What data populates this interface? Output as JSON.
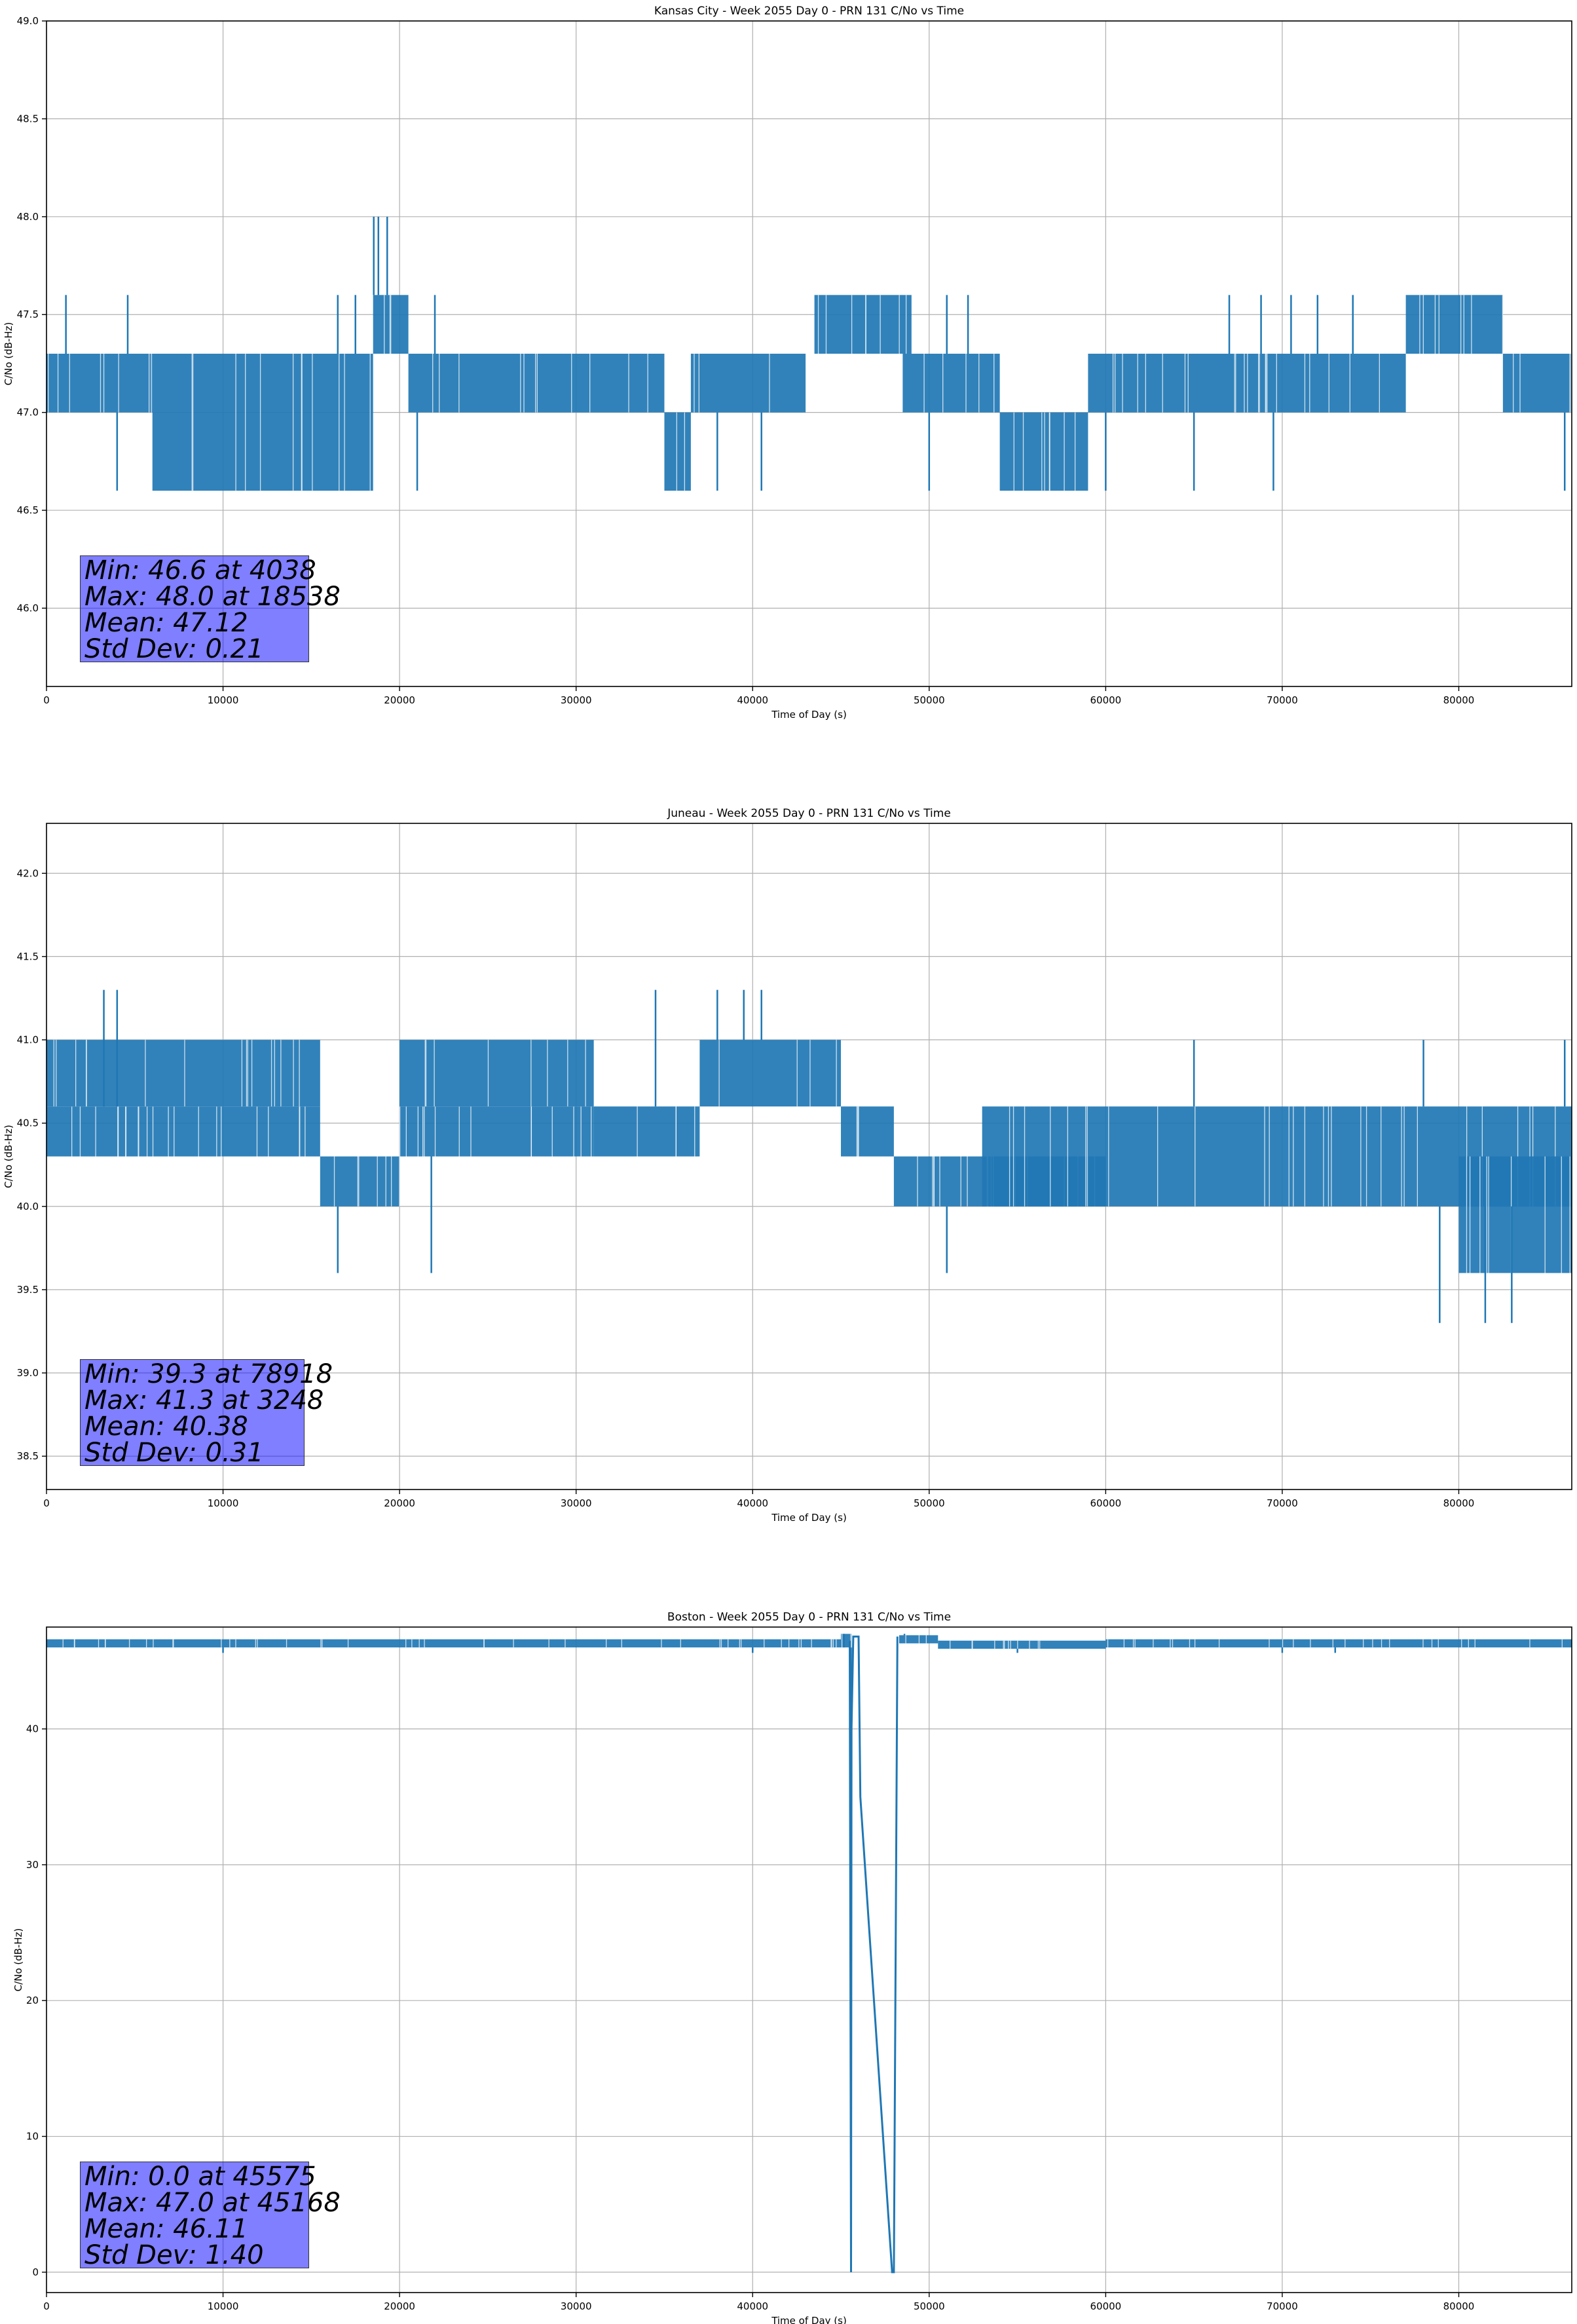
{
  "colors": {
    "series": "#1f77b4",
    "grid": "#b0b0b0",
    "stats_box": "rgba(0,0,255,0.5)"
  },
  "chart_data": [
    {
      "type": "line",
      "title": "Kansas City - Week 2055 Day 0 - PRN 131 C/No vs Time",
      "xlabel": "Time of Day (s)",
      "ylabel": "C/No (dB-Hz)",
      "xlim": [
        0,
        86400
      ],
      "ylim": [
        45.6,
        49.0
      ],
      "xticks": [
        0,
        10000,
        20000,
        30000,
        40000,
        50000,
        60000,
        70000,
        80000
      ],
      "yticks": [
        "46.0",
        "46.5",
        "47.0",
        "47.5",
        "48.0",
        "48.5",
        "49.0"
      ],
      "grid": true,
      "series": [
        {
          "segments": [
            {
              "x": [
                0,
                6000
              ],
              "low": 47.0,
              "high": 47.3
            },
            {
              "x": [
                6000,
                18500
              ],
              "low": 46.6,
              "high": 47.3
            },
            {
              "x": [
                18500,
                20500
              ],
              "low": 47.3,
              "high": 47.6
            },
            {
              "x": [
                20500,
                35000
              ],
              "low": 47.0,
              "high": 47.3
            },
            {
              "x": [
                35000,
                36500
              ],
              "low": 46.6,
              "high": 47.0
            },
            {
              "x": [
                36500,
                43000
              ],
              "low": 47.0,
              "high": 47.3
            },
            {
              "x": [
                43500,
                49000
              ],
              "low": 47.3,
              "high": 47.6
            },
            {
              "x": [
                48500,
                54000
              ],
              "low": 47.0,
              "high": 47.3
            },
            {
              "x": [
                54000,
                59000
              ],
              "low": 46.6,
              "high": 47.0
            },
            {
              "x": [
                59000,
                77000
              ],
              "low": 47.0,
              "high": 47.3
            },
            {
              "x": [
                77000,
                82500
              ],
              "low": 47.3,
              "high": 47.6
            },
            {
              "x": [
                82500,
                86400
              ],
              "low": 47.0,
              "high": 47.3
            }
          ],
          "spikes": [
            [
              1100,
              47.6
            ],
            [
              4600,
              47.6
            ],
            [
              4000,
              46.6
            ],
            [
              18538,
              48.0
            ],
            [
              18800,
              48.0
            ],
            [
              19300,
              48.0
            ],
            [
              16500,
              47.6
            ],
            [
              17500,
              47.6
            ],
            [
              22000,
              47.6
            ],
            [
              21000,
              46.6
            ],
            [
              38000,
              46.6
            ],
            [
              40500,
              46.6
            ],
            [
              51000,
              47.6
            ],
            [
              52200,
              47.6
            ],
            [
              50000,
              46.6
            ],
            [
              60000,
              46.6
            ],
            [
              65000,
              46.6
            ],
            [
              67000,
              47.6
            ],
            [
              68800,
              47.6
            ],
            [
              70500,
              47.6
            ],
            [
              69500,
              46.6
            ],
            [
              72000,
              47.6
            ],
            [
              74000,
              47.6
            ],
            [
              86000,
              46.6
            ]
          ]
        }
      ],
      "stats": {
        "min": "Min: 46.6 at 4038",
        "max": "Max: 48.0 at 18538",
        "mean": "Mean: 47.12",
        "std": "Std Dev: 0.21"
      }
    },
    {
      "type": "line",
      "title": "Juneau - Week 2055 Day 0 - PRN 131 C/No vs Time",
      "xlabel": "Time of Day (s)",
      "ylabel": "C/No (dB-Hz)",
      "xlim": [
        0,
        86400
      ],
      "ylim": [
        38.3,
        42.3
      ],
      "xticks": [
        0,
        10000,
        20000,
        30000,
        40000,
        50000,
        60000,
        70000,
        80000
      ],
      "yticks": [
        "38.5",
        "39.0",
        "39.5",
        "40.0",
        "40.5",
        "41.0",
        "41.5",
        "42.0"
      ],
      "grid": true,
      "series": [
        {
          "segments": [
            {
              "x": [
                0,
                15500
              ],
              "low": 40.3,
              "high": 40.6
            },
            {
              "x": [
                0,
                15500
              ],
              "low": 40.6,
              "high": 41.0
            },
            {
              "x": [
                15500,
                20000
              ],
              "low": 40.0,
              "high": 40.3
            },
            {
              "x": [
                20000,
                31000
              ],
              "low": 40.3,
              "high": 40.6
            },
            {
              "x": [
                20000,
                31000
              ],
              "low": 40.6,
              "high": 41.0
            },
            {
              "x": [
                31000,
                37000
              ],
              "low": 40.3,
              "high": 40.6
            },
            {
              "x": [
                37000,
                45000
              ],
              "low": 40.6,
              "high": 41.0
            },
            {
              "x": [
                45000,
                48000
              ],
              "low": 40.3,
              "high": 40.6
            },
            {
              "x": [
                48000,
                60000
              ],
              "low": 40.0,
              "high": 40.3
            },
            {
              "x": [
                53000,
                86400
              ],
              "low": 40.0,
              "high": 40.6
            },
            {
              "x": [
                80000,
                86400
              ],
              "low": 39.6,
              "high": 40.3
            }
          ],
          "spikes": [
            [
              3248,
              41.3
            ],
            [
              4000,
              41.3
            ],
            [
              34500,
              41.3
            ],
            [
              38000,
              41.3
            ],
            [
              39500,
              41.3
            ],
            [
              40500,
              41.3
            ],
            [
              16500,
              39.6
            ],
            [
              21800,
              39.6
            ],
            [
              51000,
              39.6
            ],
            [
              78918,
              39.3
            ],
            [
              81500,
              39.3
            ],
            [
              83000,
              39.3
            ],
            [
              86000,
              41.0
            ],
            [
              78000,
              41.0
            ],
            [
              65000,
              41.0
            ]
          ]
        }
      ],
      "stats": {
        "min": "Min: 39.3 at 78918",
        "max": "Max: 41.3 at 3248",
        "mean": "Mean: 40.38",
        "std": "Std Dev: 0.31"
      }
    },
    {
      "type": "line",
      "title": "Boston - Week 2055 Day 0 - PRN 131 C/No vs Time",
      "xlabel": "Time of Day (s)",
      "ylabel": "C/No (dB-Hz)",
      "xlim": [
        0,
        86400
      ],
      "ylim": [
        -1.5,
        47.5
      ],
      "xticks": [
        0,
        10000,
        20000,
        30000,
        40000,
        50000,
        60000,
        70000,
        80000
      ],
      "yticks": [
        "0",
        "10",
        "20",
        "30",
        "40"
      ],
      "grid": true,
      "series": [
        {
          "segments": [
            {
              "x": [
                0,
                45000
              ],
              "low": 46.0,
              "high": 46.6
            },
            {
              "x": [
                45000,
                45600
              ],
              "low": 46.0,
              "high": 47.0
            },
            {
              "x": [
                48300,
                50500
              ],
              "low": 46.3,
              "high": 46.9
            },
            {
              "x": [
                50500,
                60000
              ],
              "low": 45.9,
              "high": 46.5
            },
            {
              "x": [
                60000,
                86400
              ],
              "low": 46.0,
              "high": 46.6
            }
          ],
          "trace": [
            [
              45500,
              46.5
            ],
            [
              45575,
              0.0
            ],
            [
              45600,
              40.0
            ],
            [
              45700,
              46.8
            ],
            [
              46000,
              46.8
            ],
            [
              46100,
              35.0
            ],
            [
              47900,
              0.0
            ],
            [
              48000,
              0.0
            ],
            [
              48200,
              46.8
            ]
          ],
          "spikes": [
            [
              45575,
              0.0
            ],
            [
              45168,
              47.0
            ],
            [
              46300,
              47.0
            ],
            [
              48600,
              47.0
            ],
            [
              70000,
              45.6
            ],
            [
              73000,
              45.6
            ],
            [
              55000,
              45.6
            ],
            [
              40000,
              45.6
            ],
            [
              10000,
              45.6
            ]
          ]
        }
      ],
      "stats": {
        "min": "Min: 0.0 at 45575",
        "max": "Max: 47.0 at 45168",
        "mean": "Mean: 46.11",
        "std": "Std Dev: 1.40"
      }
    }
  ]
}
